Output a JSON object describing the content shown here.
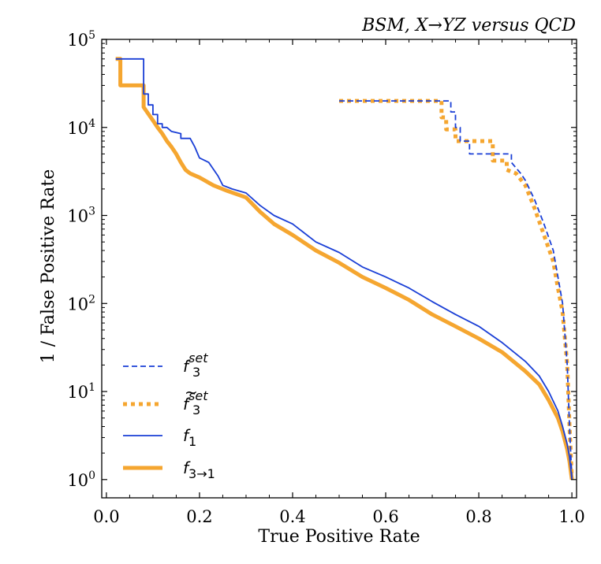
{
  "chart_data": {
    "type": "line",
    "title": "BSM, X→YZ versus QCD",
    "xlabel": "True Positive Rate",
    "ylabel": "1 / False Positive Rate",
    "xlim": [
      -0.01,
      1.01
    ],
    "ylim": [
      0.62,
      100000
    ],
    "yscale": "log",
    "grid": false,
    "legend_position": "lower-left",
    "x_ticks": [
      {
        "value": 0.0,
        "label": "0.0"
      },
      {
        "value": 0.2,
        "label": "0.2"
      },
      {
        "value": 0.4,
        "label": "0.4"
      },
      {
        "value": 0.6,
        "label": "0.6"
      },
      {
        "value": 0.8,
        "label": "0.8"
      },
      {
        "value": 1.0,
        "label": "1.0"
      }
    ],
    "y_ticks": [
      {
        "value": 1,
        "base": "10",
        "exp": "0"
      },
      {
        "value": 10,
        "base": "10",
        "exp": "1"
      },
      {
        "value": 100,
        "base": "10",
        "exp": "2"
      },
      {
        "value": 1000,
        "base": "10",
        "exp": "3"
      },
      {
        "value": 10000,
        "base": "10",
        "exp": "4"
      },
      {
        "value": 100000,
        "base": "10",
        "exp": "5"
      }
    ],
    "series": [
      {
        "name": "f3set",
        "legend": {
          "base": "f",
          "sub": "3",
          "sup": "set",
          "tilde": false
        },
        "color": "#1a3fd6",
        "style": "dashed",
        "width": 1.8,
        "x": [
          0.5,
          0.73,
          0.74,
          0.74,
          0.75,
          0.75,
          0.76,
          0.76,
          0.78,
          0.78,
          0.82,
          0.82,
          0.87,
          0.87,
          0.89,
          0.9,
          0.92,
          0.94,
          0.96,
          0.97,
          0.98,
          0.99,
          0.995,
          1.0
        ],
        "y": [
          20000,
          20000,
          20000,
          15000,
          15000,
          10000,
          10000,
          7000,
          7000,
          5000,
          5000,
          5000,
          5000,
          4000,
          3000,
          2500,
          1500,
          800,
          400,
          200,
          100,
          20,
          4,
          1
        ]
      },
      {
        "name": "f3set-tilde",
        "legend": {
          "base": "f",
          "sub": "3",
          "sup": "set",
          "tilde": true
        },
        "color": "#f5a630",
        "style": "dotted",
        "width": 5,
        "x": [
          0.5,
          0.72,
          0.72,
          0.73,
          0.73,
          0.75,
          0.75,
          0.83,
          0.83,
          0.86,
          0.86,
          0.88,
          0.9,
          0.92,
          0.94,
          0.96,
          0.97,
          0.98,
          0.99,
          0.995,
          1.0
        ],
        "y": [
          20000,
          20000,
          13000,
          13000,
          9500,
          9500,
          7000,
          7000,
          4200,
          4200,
          3300,
          3000,
          2200,
          1200,
          600,
          300,
          150,
          80,
          20,
          4,
          1
        ]
      },
      {
        "name": "f1",
        "legend": {
          "base": "f",
          "sub": "1",
          "sup": "",
          "tilde": false
        },
        "color": "#1a3fd6",
        "style": "solid",
        "width": 1.8,
        "x": [
          0.02,
          0.08,
          0.08,
          0.09,
          0.09,
          0.1,
          0.1,
          0.11,
          0.11,
          0.12,
          0.12,
          0.13,
          0.14,
          0.16,
          0.16,
          0.18,
          0.19,
          0.2,
          0.22,
          0.24,
          0.25,
          0.27,
          0.3,
          0.33,
          0.36,
          0.4,
          0.45,
          0.5,
          0.55,
          0.6,
          0.65,
          0.7,
          0.75,
          0.8,
          0.85,
          0.9,
          0.93,
          0.95,
          0.97,
          0.98,
          0.99,
          0.995,
          1.0
        ],
        "y": [
          60000,
          60000,
          24000,
          24000,
          18000,
          18000,
          14000,
          14000,
          11000,
          11000,
          10000,
          10000,
          9000,
          8500,
          7500,
          7500,
          6000,
          4500,
          4000,
          2800,
          2200,
          2000,
          1800,
          1300,
          1000,
          800,
          500,
          380,
          260,
          200,
          150,
          105,
          75,
          55,
          36,
          22,
          15,
          10,
          6,
          4,
          2.5,
          1.8,
          1
        ]
      },
      {
        "name": "f3to1",
        "legend": {
          "base": "f",
          "sub": "3→1",
          "sup": "",
          "tilde": false
        },
        "color": "#f5a630",
        "style": "solid",
        "width": 5,
        "x": [
          0.02,
          0.03,
          0.03,
          0.08,
          0.08,
          0.1,
          0.11,
          0.12,
          0.13,
          0.14,
          0.15,
          0.16,
          0.17,
          0.18,
          0.2,
          0.23,
          0.26,
          0.3,
          0.33,
          0.36,
          0.4,
          0.45,
          0.5,
          0.55,
          0.6,
          0.65,
          0.7,
          0.75,
          0.8,
          0.85,
          0.9,
          0.93,
          0.95,
          0.97,
          0.98,
          0.99,
          0.995,
          1.0
        ],
        "y": [
          60000,
          60000,
          30000,
          30000,
          17000,
          12000,
          10000,
          8500,
          7000,
          6000,
          5000,
          4000,
          3300,
          3000,
          2700,
          2200,
          1900,
          1600,
          1100,
          800,
          600,
          400,
          290,
          200,
          150,
          110,
          75,
          55,
          40,
          28,
          17,
          12,
          8,
          5,
          3.5,
          2.2,
          1.6,
          1
        ]
      }
    ]
  }
}
